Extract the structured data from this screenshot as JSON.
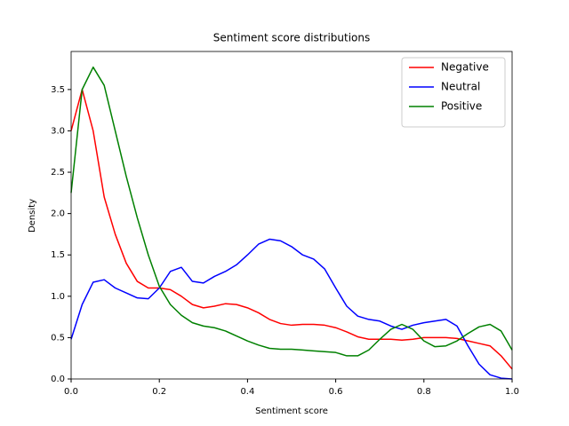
{
  "chart_data": {
    "type": "line",
    "title": "Sentiment score distributions",
    "xlabel": "Sentiment score",
    "ylabel": "Density",
    "x": [
      0,
      0.025,
      0.05,
      0.075,
      0.1,
      0.125,
      0.15,
      0.175,
      0.2,
      0.225,
      0.25,
      0.275,
      0.3,
      0.325,
      0.35,
      0.375,
      0.4,
      0.425,
      0.45,
      0.475,
      0.5,
      0.525,
      0.55,
      0.575,
      0.6,
      0.625,
      0.65,
      0.675,
      0.7,
      0.725,
      0.75,
      0.775,
      0.8,
      0.825,
      0.85,
      0.875,
      0.9,
      0.925,
      0.95,
      0.975,
      1
    ],
    "series": [
      {
        "name": "Negative",
        "color": "#ff0000",
        "values": [
          3.0,
          3.5,
          3.0,
          2.2,
          1.75,
          1.4,
          1.18,
          1.1,
          1.1,
          1.08,
          1.0,
          0.9,
          0.86,
          0.88,
          0.91,
          0.9,
          0.86,
          0.8,
          0.72,
          0.67,
          0.65,
          0.66,
          0.66,
          0.65,
          0.62,
          0.57,
          0.51,
          0.48,
          0.48,
          0.48,
          0.47,
          0.48,
          0.5,
          0.5,
          0.5,
          0.49,
          0.46,
          0.43,
          0.4,
          0.28,
          0.12
        ]
      },
      {
        "name": "Neutral",
        "color": "#0000ff",
        "values": [
          0.48,
          0.9,
          1.17,
          1.2,
          1.1,
          1.04,
          0.98,
          0.97,
          1.1,
          1.3,
          1.35,
          1.18,
          1.16,
          1.24,
          1.3,
          1.38,
          1.5,
          1.63,
          1.69,
          1.67,
          1.6,
          1.5,
          1.45,
          1.33,
          1.1,
          0.88,
          0.76,
          0.72,
          0.7,
          0.64,
          0.6,
          0.65,
          0.68,
          0.7,
          0.72,
          0.64,
          0.4,
          0.18,
          0.05,
          0.01,
          0.0
        ]
      },
      {
        "name": "Positive",
        "color": "#008000",
        "values": [
          2.25,
          3.5,
          3.77,
          3.55,
          3.0,
          2.45,
          1.95,
          1.5,
          1.12,
          0.9,
          0.77,
          0.68,
          0.64,
          0.62,
          0.58,
          0.52,
          0.46,
          0.41,
          0.37,
          0.36,
          0.36,
          0.35,
          0.34,
          0.33,
          0.32,
          0.28,
          0.28,
          0.35,
          0.48,
          0.6,
          0.66,
          0.6,
          0.46,
          0.39,
          0.4,
          0.46,
          0.55,
          0.63,
          0.66,
          0.58,
          0.35
        ]
      }
    ],
    "xlim": [
      0,
      1
    ],
    "ylim": [
      0,
      3.96
    ],
    "xticks": [
      {
        "value": 0,
        "label": "0.0"
      },
      0.2,
      0.4,
      0.6,
      0.8,
      {
        "value": 1,
        "label": "1.0"
      }
    ],
    "yticks": [
      {
        "value": 0,
        "label": "0.0"
      },
      0.5,
      {
        "value": 1,
        "label": "1.0"
      },
      1.5,
      {
        "value": 2,
        "label": "2.0"
      },
      2.5,
      {
        "value": 3,
        "label": "3.0"
      },
      3.5
    ],
    "legend": "upper right",
    "grid": false
  }
}
